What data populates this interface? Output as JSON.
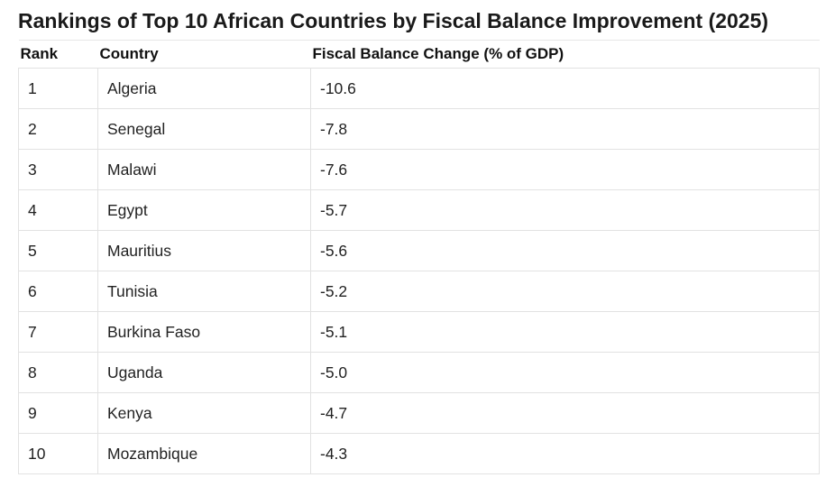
{
  "title": "Rankings of Top 10 African Countries by Fiscal Balance Improvement (2025)",
  "columns": {
    "rank": "Rank",
    "country": "Country",
    "value": "Fiscal Balance Change (% of GDP)"
  },
  "rows": [
    {
      "rank": "1",
      "country": "Algeria",
      "value": "-10.6"
    },
    {
      "rank": "2",
      "country": "Senegal",
      "value": "-7.8"
    },
    {
      "rank": "3",
      "country": "Malawi",
      "value": "-7.6"
    },
    {
      "rank": "4",
      "country": "Egypt",
      "value": "-5.7"
    },
    {
      "rank": "5",
      "country": "Mauritius",
      "value": "-5.6"
    },
    {
      "rank": "6",
      "country": "Tunisia",
      "value": "-5.2"
    },
    {
      "rank": "7",
      "country": "Burkina Faso",
      "value": "-5.1"
    },
    {
      "rank": "8",
      "country": "Uganda",
      "value": "-5.0"
    },
    {
      "rank": "9",
      "country": "Kenya",
      "value": "-4.7"
    },
    {
      "rank": "10",
      "country": "Mozambique",
      "value": "-4.3"
    }
  ],
  "chart_data": {
    "type": "table",
    "title": "Rankings of Top 10 African Countries by Fiscal Balance Improvement (2025)",
    "columns": [
      "Rank",
      "Country",
      "Fiscal Balance Change (% of GDP)"
    ],
    "rows": [
      [
        1,
        "Algeria",
        -10.6
      ],
      [
        2,
        "Senegal",
        -7.8
      ],
      [
        3,
        "Malawi",
        -7.6
      ],
      [
        4,
        "Egypt",
        -5.7
      ],
      [
        5,
        "Mauritius",
        -5.6
      ],
      [
        6,
        "Tunisia",
        -5.2
      ],
      [
        7,
        "Burkina Faso",
        -5.1
      ],
      [
        8,
        "Uganda",
        -5.0
      ],
      [
        9,
        "Kenya",
        -4.7
      ],
      [
        10,
        "Mozambique",
        -4.3
      ]
    ]
  }
}
